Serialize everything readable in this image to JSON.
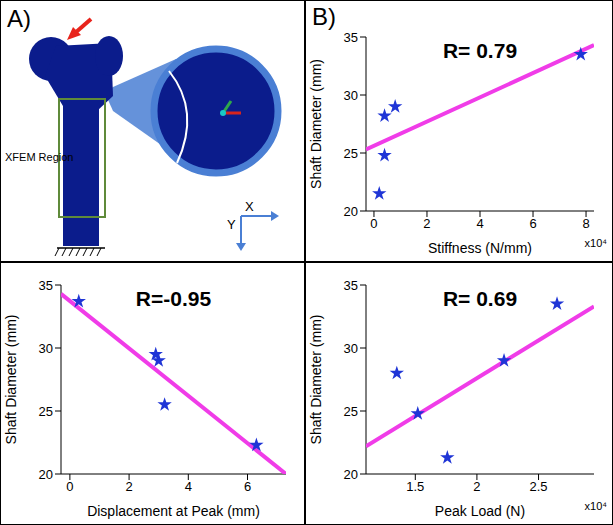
{
  "panel_a": {
    "letter": "A)",
    "region_label": "XFEM Region",
    "axis_labels": [
      "X",
      "Y"
    ]
  },
  "chart_data": [
    {
      "type": "scatter",
      "letter": "B)",
      "annotation": "R= 0.79",
      "x_label": "Stiffness (N/mm)",
      "y_label": "Shaft Diameter (mm)",
      "x_multiplier": "x10⁴",
      "xlim": [
        -0.3,
        8.3
      ],
      "xticks": [
        0,
        2,
        4,
        6,
        8
      ],
      "ylim": [
        20,
        35
      ],
      "yticks": [
        20,
        25,
        30,
        35
      ],
      "grid": false,
      "series": [
        {
          "type": "scatter",
          "marker": "star",
          "color": "#1f35d6",
          "x": [
            0.2,
            0.4,
            0.4,
            0.8,
            7.8
          ],
          "values": [
            21.5,
            24.8,
            28.2,
            29,
            33.5
          ]
        },
        {
          "type": "line",
          "color": "#f03ce8",
          "x": [
            -0.3,
            8.3
          ],
          "values": [
            25.3,
            34.3
          ]
        }
      ]
    },
    {
      "type": "scatter",
      "annotation": "R=-0.95",
      "x_label": "Displacement at Peak (mm)",
      "y_label": "Shaft Diameter (mm)",
      "xlim": [
        -0.3,
        7.3
      ],
      "xticks": [
        0,
        2,
        4,
        6
      ],
      "ylim": [
        20,
        35
      ],
      "yticks": [
        20,
        25,
        30,
        35
      ],
      "grid": false,
      "series": [
        {
          "type": "scatter",
          "marker": "star",
          "color": "#1f35d6",
          "x": [
            0.3,
            2.9,
            3.0,
            3.2,
            6.3
          ],
          "values": [
            33.7,
            29.5,
            29,
            25.5,
            22.3
          ]
        },
        {
          "type": "line",
          "color": "#f03ce8",
          "x": [
            -0.3,
            7.3
          ],
          "values": [
            34.3,
            20
          ]
        }
      ]
    },
    {
      "type": "scatter",
      "annotation": "R= 0.69",
      "x_label": "Peak Load (N)",
      "y_label": "Shaft Diameter (mm)",
      "x_multiplier": "x10⁴",
      "xlim": [
        1.1,
        2.95
      ],
      "xticks": [
        1.5,
        2,
        2.5
      ],
      "ylim": [
        20,
        35
      ],
      "yticks": [
        20,
        25,
        30,
        35
      ],
      "grid": false,
      "series": [
        {
          "type": "scatter",
          "marker": "star",
          "color": "#1f35d6",
          "x": [
            1.35,
            1.52,
            1.76,
            2.22,
            2.65
          ],
          "values": [
            28,
            24.8,
            21.3,
            29,
            33.5
          ]
        },
        {
          "type": "line",
          "color": "#f03ce8",
          "x": [
            1.1,
            2.95
          ],
          "values": [
            22.2,
            33.3
          ]
        }
      ]
    }
  ]
}
